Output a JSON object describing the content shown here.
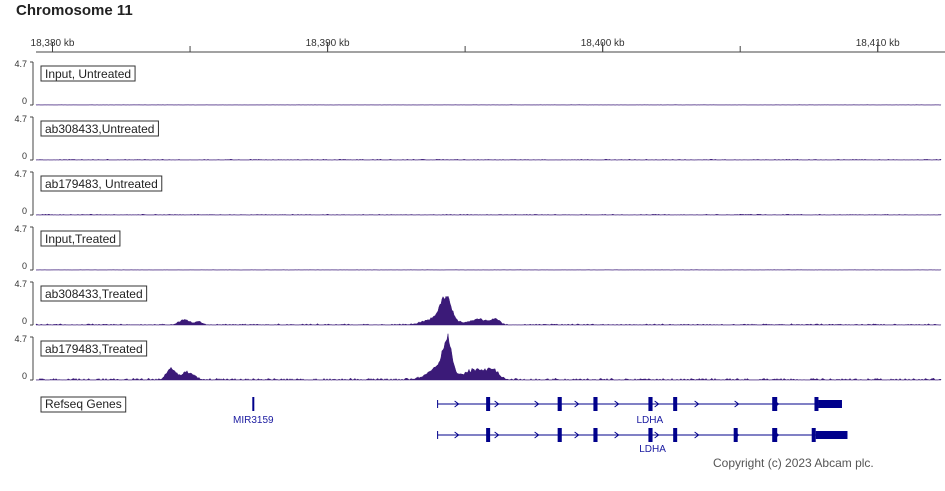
{
  "title": "Chromosome 11",
  "copyright": "Copyright (c) 2023 Abcam plc.",
  "colors": {
    "signal": "#3b1a78",
    "gene": "#00008b",
    "axis": "#444444"
  },
  "chart_data": {
    "type": "area",
    "title": "Chromosome 11",
    "x_axis": {
      "unit": "kb",
      "range_kb": [
        18379.4,
        18412.3
      ],
      "ticks_kb": [
        18380,
        18390,
        18400,
        18410
      ],
      "tick_labels": [
        "18,380 kb",
        "18,390 kb",
        "18,400 kb",
        "18,410 kb"
      ]
    },
    "y_axis": {
      "min_label": "0",
      "max_label": "4.7",
      "max": 4.7
    },
    "tracks": [
      {
        "name": "Input, Untreated",
        "peaks": [],
        "noise": 0.04
      },
      {
        "name": "ab308433,Untreated",
        "peaks": [],
        "noise": 0.08
      },
      {
        "name": "ab179483, Untreated",
        "peaks": [],
        "noise": 0.08
      },
      {
        "name": "Input,Treated",
        "peaks": [],
        "noise": 0.04
      },
      {
        "name": "ab308433,Treated",
        "peaks": [
          {
            "center_kb": 18384.8,
            "height": 0.55,
            "width_kb": 0.35
          },
          {
            "center_kb": 18385.3,
            "height": 0.35,
            "width_kb": 0.25
          },
          {
            "center_kb": 18394.3,
            "height": 2.4,
            "width_kb": 0.35
          },
          {
            "center_kb": 18394.1,
            "height": 0.9,
            "width_kb": 0.9
          },
          {
            "center_kb": 18395.5,
            "height": 0.6,
            "width_kb": 0.6
          },
          {
            "center_kb": 18396.1,
            "height": 0.55,
            "width_kb": 0.3
          }
        ],
        "noise": 0.12
      },
      {
        "name": "ab179483,Treated",
        "peaks": [
          {
            "center_kb": 18384.3,
            "height": 1.2,
            "width_kb": 0.3
          },
          {
            "center_kb": 18384.9,
            "height": 0.8,
            "width_kb": 0.45
          },
          {
            "center_kb": 18394.35,
            "height": 3.4,
            "width_kb": 0.3
          },
          {
            "center_kb": 18394.1,
            "height": 1.4,
            "width_kb": 0.8
          },
          {
            "center_kb": 18395.4,
            "height": 1.1,
            "width_kb": 0.7
          },
          {
            "center_kb": 18396.0,
            "height": 1.0,
            "width_kb": 0.4
          }
        ],
        "noise": 0.18
      }
    ],
    "genes_track": {
      "name": "Refseq Genes",
      "genes": [
        {
          "name": "MIR3159",
          "start_kb": 18387.3,
          "end_kb": 18387.4,
          "exons_kb": [
            [
              18387.3,
              18387.4
            ]
          ]
        },
        {
          "name": "LDHA",
          "start_kb": 18394.0,
          "end_kb": 18408.7,
          "exons_kb": [
            [
              18395.8,
              18395.9
            ],
            [
              18398.4,
              18398.55
            ],
            [
              18399.7,
              18399.85
            ],
            [
              18401.7,
              18401.85
            ],
            [
              18402.6,
              18402.7
            ]
          ],
          "utr_kb": [
            18406.2,
            18406.35
          ],
          "cds_end_kb": [
            18407.7,
            18408.7
          ]
        },
        {
          "name": "LDHA",
          "start_kb": 18394.0,
          "end_kb": 18408.9,
          "exons_kb": [
            [
              18395.8,
              18395.9
            ],
            [
              18398.4,
              18398.55
            ],
            [
              18399.7,
              18399.85
            ],
            [
              18401.7,
              18401.85
            ],
            [
              18402.6,
              18402.7
            ],
            [
              18404.8,
              18404.9
            ]
          ],
          "utr_kb": [
            18406.2,
            18406.35
          ],
          "cds_end_kb": [
            18407.6,
            18408.9
          ]
        }
      ]
    }
  }
}
